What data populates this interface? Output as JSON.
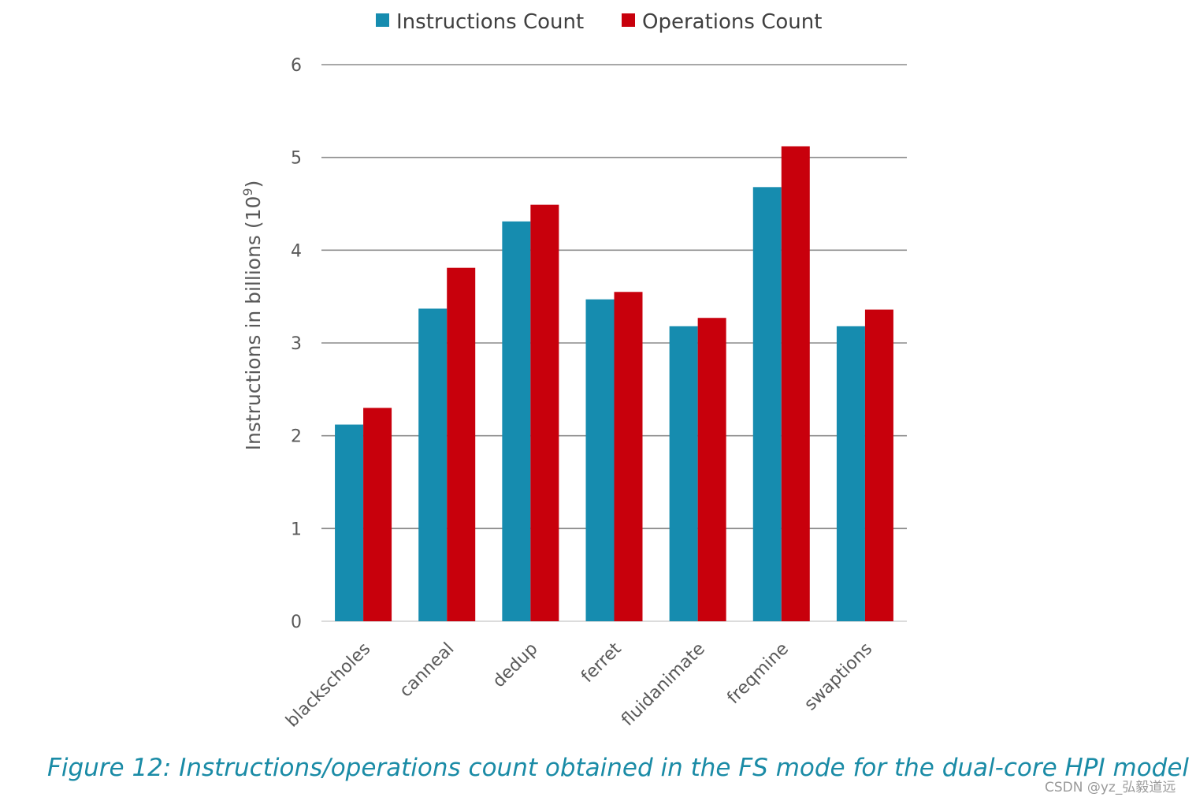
{
  "chart_data": {
    "type": "bar",
    "categories": [
      "blackscholes",
      "canneal",
      "dedup",
      "ferret",
      "fluidanimate",
      "freqmine",
      "swaptions"
    ],
    "series": [
      {
        "name": "Instructions Count",
        "color": "#168caf",
        "values": [
          2.12,
          3.37,
          4.31,
          3.47,
          3.18,
          4.68,
          3.18
        ]
      },
      {
        "name": "Operations Count",
        "color": "#c8000c",
        "values": [
          2.3,
          3.81,
          4.49,
          3.55,
          3.27,
          5.12,
          3.36
        ]
      }
    ],
    "ylabel_text": "Instructions in billions (10",
    "ylabel_sup": "9",
    "ylabel_close": ")",
    "yticks": [
      "0",
      "1",
      "2",
      "3",
      "4",
      "5",
      "6"
    ],
    "ylim": [
      0,
      6
    ],
    "grid": true,
    "legend_position": "top-center"
  },
  "caption": "Figure 12: Instructions/operations count obtained in the FS mode for the dual-core HPI model",
  "watermark": "CSDN @yz_弘毅道远"
}
